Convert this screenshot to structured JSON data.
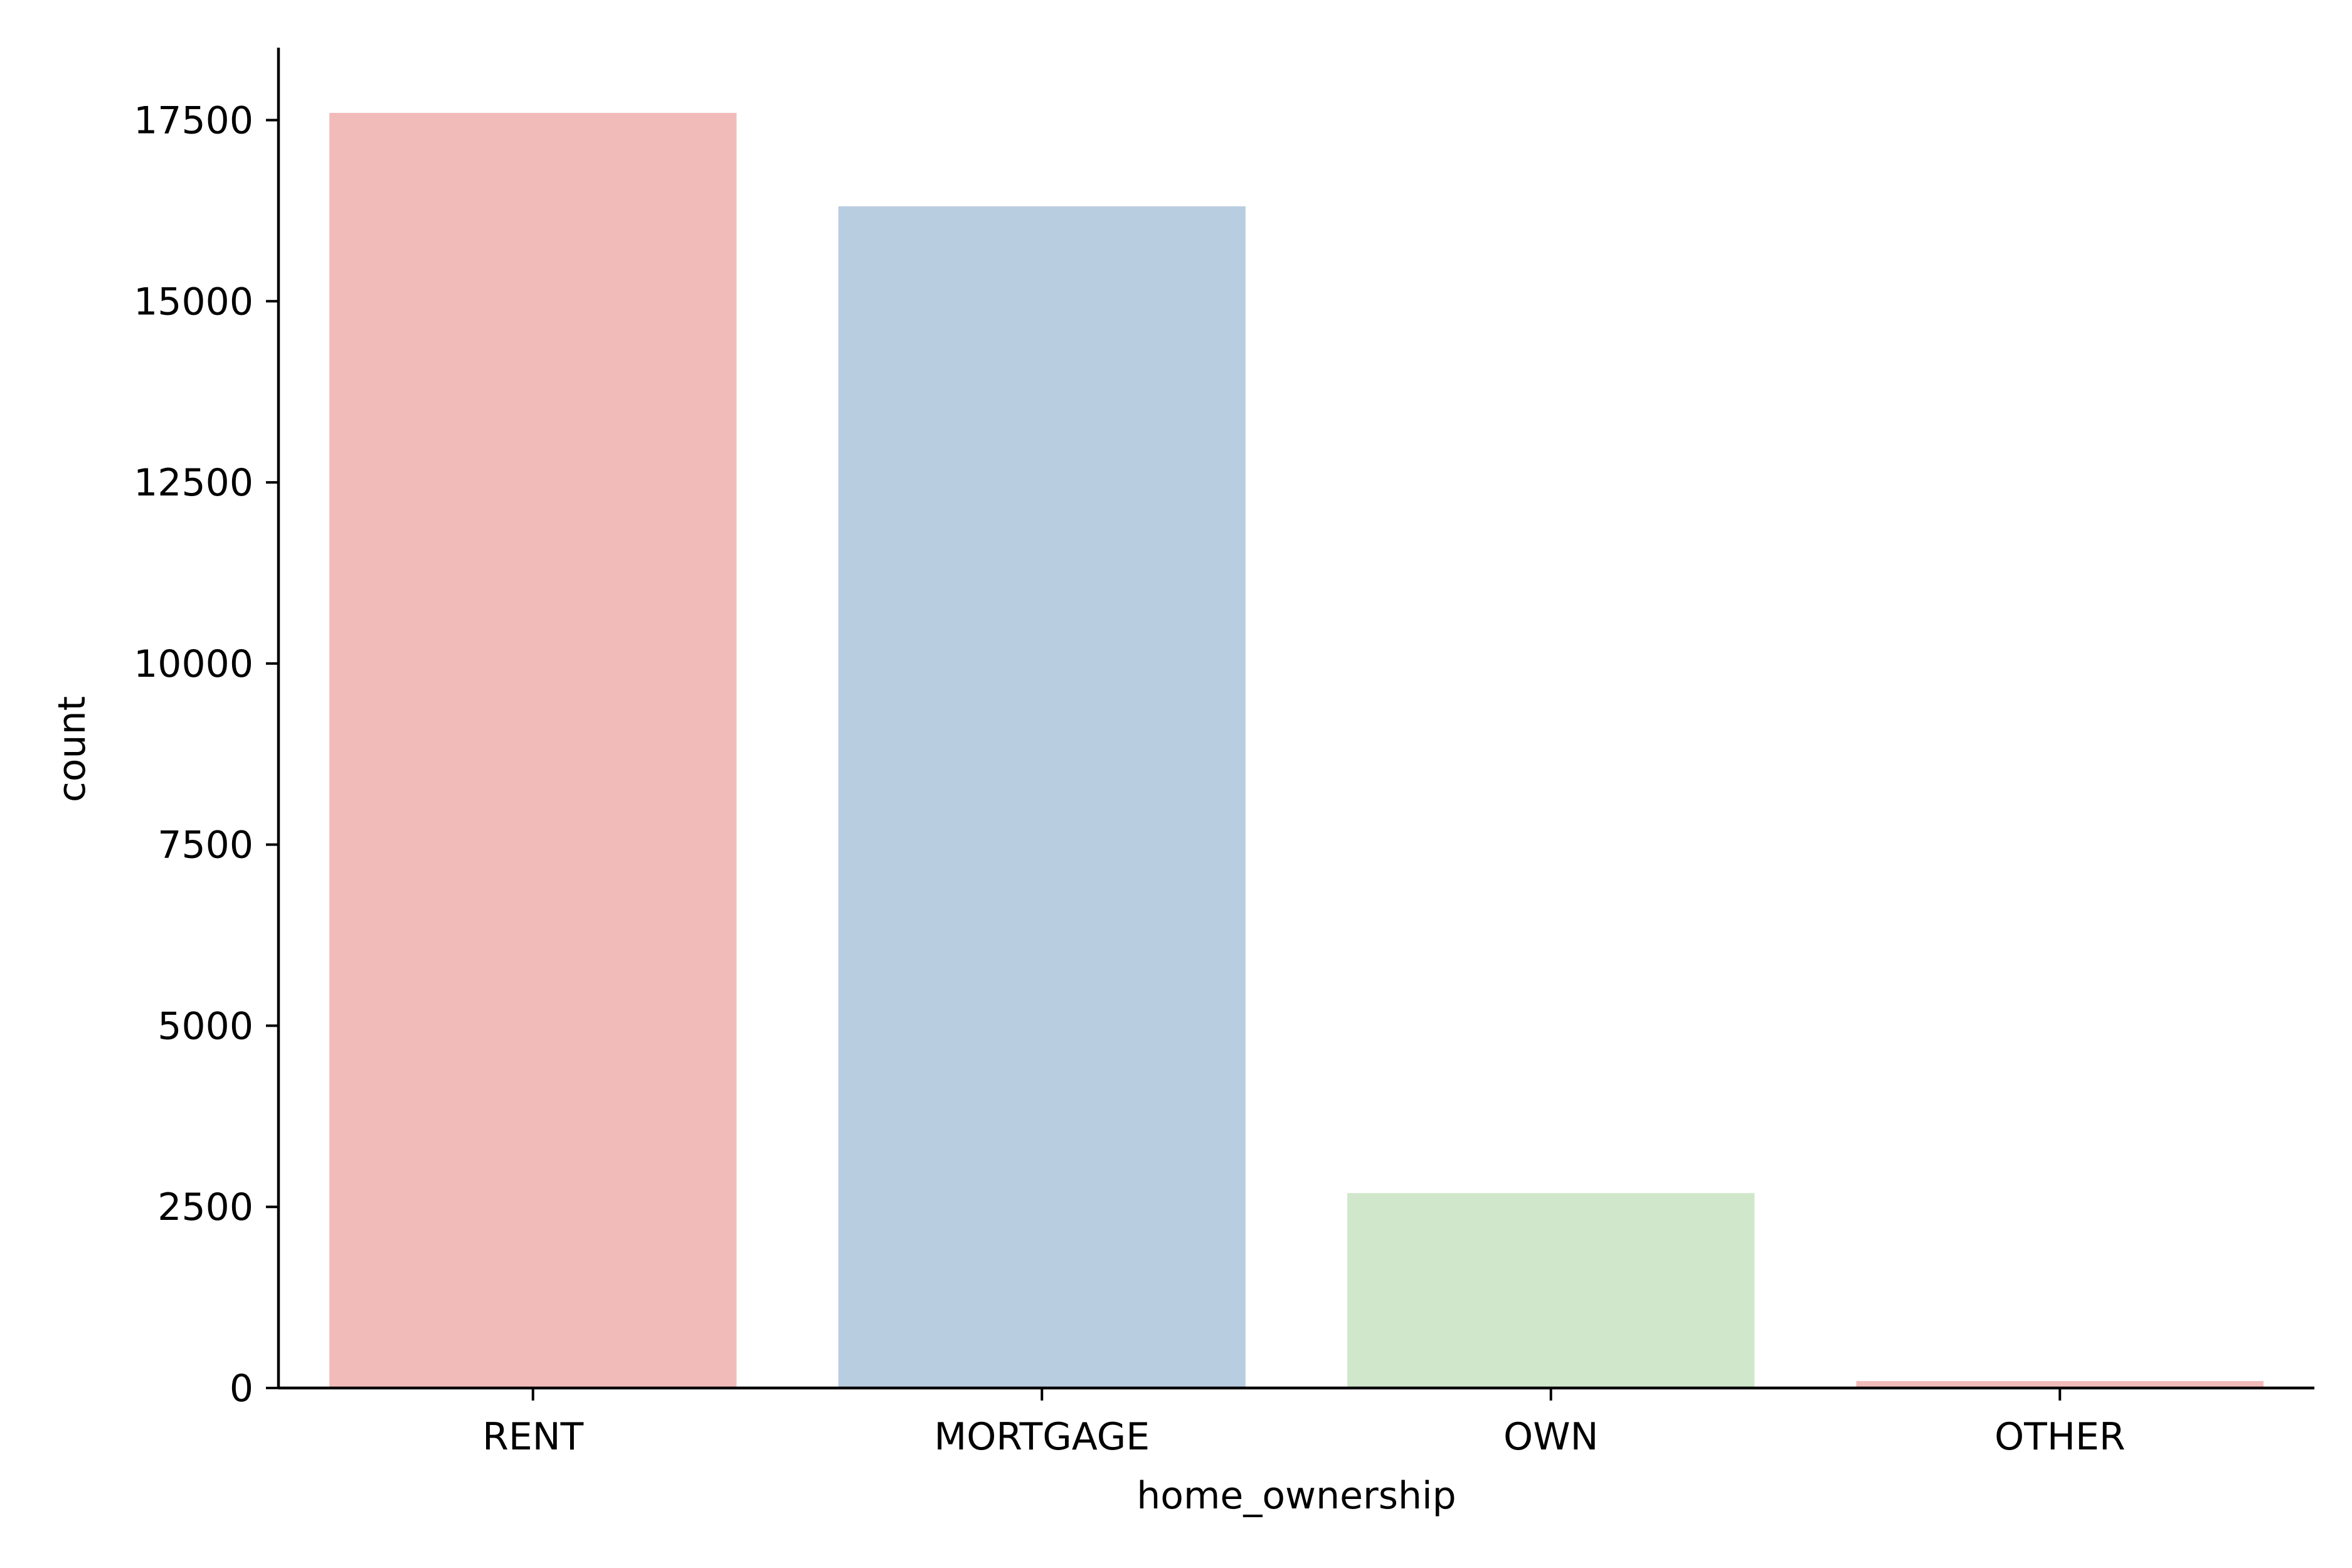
{
  "chart_data": {
    "type": "bar",
    "title": "",
    "xlabel": "home_ownership",
    "ylabel": "count",
    "categories": [
      "RENT",
      "MORTGAGE",
      "OWN",
      "OTHER"
    ],
    "values": [
      17600,
      16310,
      2690,
      96
    ],
    "ylim": [
      0,
      18500
    ],
    "yticks": [
      0,
      2500,
      5000,
      7500,
      10000,
      12500,
      15000,
      17500
    ],
    "colors": [
      "#f1bbba",
      "#b9cde0",
      "#d0e7cb",
      "#f1bbba"
    ],
    "grid": false,
    "legend": "none"
  }
}
